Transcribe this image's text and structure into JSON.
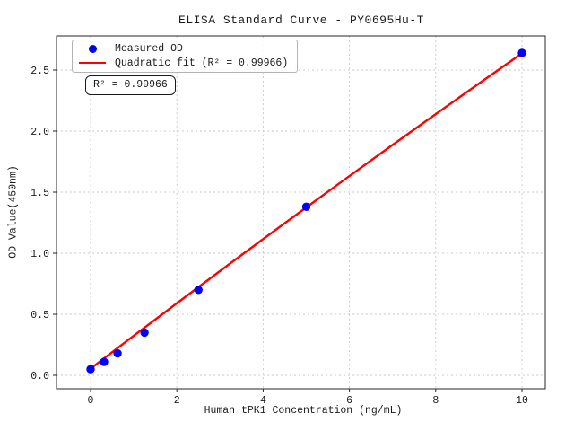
{
  "chart_data": {
    "type": "scatter",
    "title": "ELISA Standard Curve - PY0695Hu-T",
    "xlabel": "Human tPK1 Concentration (ng/mL)",
    "ylabel": "OD Value(450nm)",
    "x_ticks": [
      0,
      2,
      4,
      6,
      8,
      10
    ],
    "y_ticks": [
      0.0,
      0.5,
      1.0,
      1.5,
      2.0,
      2.5
    ],
    "xlim": [
      -0.8,
      10.55
    ],
    "ylim": [
      -0.11,
      2.78
    ],
    "grid": true,
    "grid_style": "dotted",
    "legend_position": "upper left",
    "annotation": "R² = 0.99966",
    "series": [
      {
        "name": "Measured OD",
        "kind": "scatter",
        "color": "#0000ff",
        "x": [
          0,
          0.3125,
          0.625,
          1.25,
          2.5,
          5,
          10
        ],
        "y": [
          0.05,
          0.11,
          0.18,
          0.35,
          0.7,
          1.38,
          2.64
        ]
      },
      {
        "name": "Quadratic fit (R² = 0.99966)",
        "kind": "line",
        "color": "#ff0000",
        "r_squared": 0.99966,
        "x": [
          0,
          1,
          2,
          3,
          4,
          5,
          6,
          7,
          8,
          9,
          10
        ],
        "y": [
          0.055,
          0.324,
          0.59,
          0.854,
          1.116,
          1.375,
          1.632,
          1.887,
          2.139,
          2.389,
          2.637
        ]
      }
    ],
    "colors": {
      "scatter": "#0000ff",
      "fit_line": "#ff0000",
      "grid": "#c9c9c9",
      "spine": "#262626",
      "text": "#1a1a1a"
    }
  }
}
